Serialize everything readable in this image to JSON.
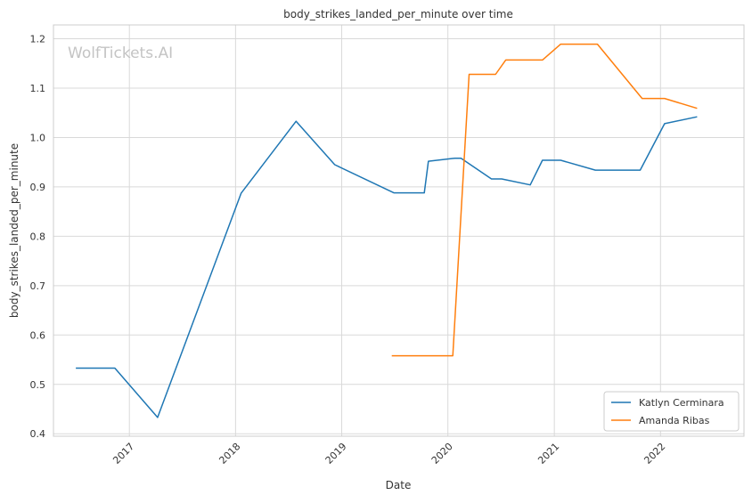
{
  "chart_data": {
    "type": "line",
    "title": "body_strikes_landed_per_minute over time",
    "xlabel": "Date",
    "ylabel": "body_strikes_landed_per_minute",
    "watermark": "WolfTickets.AI",
    "grid": true,
    "legend_position": "lower-right",
    "xlim": [
      "2016-04-15",
      "2022-10-15"
    ],
    "ylim": [
      0.395,
      1.228
    ],
    "x_ticks": [
      "2017",
      "2018",
      "2019",
      "2020",
      "2021",
      "2022"
    ],
    "y_ticks": [
      "0.4",
      "0.5",
      "0.6",
      "0.7",
      "0.8",
      "0.9",
      "1.0",
      "1.1",
      "1.2"
    ],
    "series": [
      {
        "name": "Katlyn Cerminara",
        "color": "#1f77b4",
        "x": [
          "2016-07-01",
          "2016-11-12",
          "2017-04-08",
          "2018-01-20",
          "2018-07-28",
          "2018-12-08",
          "2019-06-29",
          "2019-10-12",
          "2019-10-26",
          "2020-01-25",
          "2020-02-15",
          "2020-05-30",
          "2020-07-04",
          "2020-10-10",
          "2020-11-21",
          "2021-01-23",
          "2021-05-22",
          "2021-10-23",
          "2022-01-15",
          "2022-05-07"
        ],
        "y": [
          0.533,
          0.533,
          0.433,
          0.887,
          1.033,
          0.945,
          0.888,
          0.888,
          0.952,
          0.958,
          0.958,
          0.916,
          0.916,
          0.904,
          0.954,
          0.954,
          0.934,
          0.934,
          1.028,
          1.042
        ]
      },
      {
        "name": "Amanda Ribas",
        "color": "#ff7f0e",
        "x": [
          "2019-06-22",
          "2020-01-18",
          "2020-03-14",
          "2020-06-13",
          "2020-07-18",
          "2020-11-21",
          "2021-01-23",
          "2021-05-29",
          "2021-10-30",
          "2022-01-15",
          "2022-05-07"
        ],
        "y": [
          0.558,
          0.558,
          1.128,
          1.128,
          1.157,
          1.157,
          1.189,
          1.189,
          1.079,
          1.079,
          1.059
        ]
      }
    ]
  }
}
